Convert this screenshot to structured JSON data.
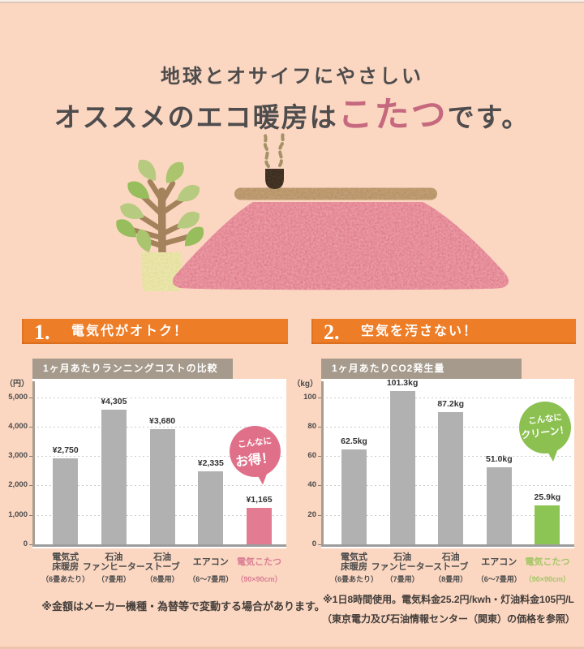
{
  "header": {
    "subtitle": "地球とオサイフにやさしい",
    "title_prefix": "オススメのエコ暖房は",
    "title_highlight": "こたつ",
    "title_suffix": "です。"
  },
  "colors": {
    "background": "#fbd7c2",
    "accent_orange": "#ee7d28",
    "band_taupe": "#a59a8b",
    "bar_gray": "#b1b1b1",
    "bar_pink": "#e37b93",
    "bar_green": "#8cc553",
    "bubble_pink": "#e0708a",
    "bubble_green": "#8cc152",
    "highlight_text_pink": "#db7d94",
    "highlight_text_green": "#a3c763",
    "title_highlight_rose": "#c6697e"
  },
  "illustration": {
    "items": [
      "potted-plant",
      "kotatsu-table",
      "pink-blanket",
      "teapot",
      "steam"
    ]
  },
  "sections": [
    {
      "number": "1.",
      "label": "電気代がオトク！"
    },
    {
      "number": "2.",
      "label": "空気を汚さない！"
    }
  ],
  "chart_data": [
    {
      "type": "bar",
      "title": "1ヶ月あたりランニングコストの比較",
      "unit_label": "（円）",
      "categories": [
        {
          "lines": [
            "電気式",
            "床暖房"
          ],
          "note": "（6畳あたり）"
        },
        {
          "lines": [
            "石油",
            "ファンヒーター"
          ],
          "note": "（7畳用）"
        },
        {
          "lines": [
            "石油",
            "ストーブ"
          ],
          "note": "（8畳用）"
        },
        {
          "lines": [
            "エアコン"
          ],
          "note": "（6〜7畳用）"
        },
        {
          "lines": [
            "電気こたつ"
          ],
          "note": "（90×90cm）"
        }
      ],
      "values": [
        2750,
        4305,
        3680,
        2335,
        1165
      ],
      "value_labels": [
        "¥2,750",
        "¥4,305",
        "¥3,680",
        "¥2,335",
        "¥1,165"
      ],
      "yticks": [
        0,
        1000,
        2000,
        3000,
        4000,
        5000
      ],
      "ytick_labels": [
        "0",
        "1,000",
        "2,000",
        "3,000",
        "4,000",
        "5,000"
      ],
      "ylim": [
        0,
        5500
      ],
      "grid": "dotted-horizontal",
      "legend": "none",
      "highlight_index": 4,
      "bubble": {
        "line1": "こんなに",
        "line2": "お得！"
      }
    },
    {
      "type": "bar",
      "title": "1ヶ月あたりCO2発生量",
      "unit_label": "（kg）",
      "categories": [
        {
          "lines": [
            "電気式",
            "床暖房"
          ],
          "note": "（6畳あたり）"
        },
        {
          "lines": [
            "石油",
            "ファンヒーター"
          ],
          "note": "（7畳用）"
        },
        {
          "lines": [
            "石油",
            "ストーブ"
          ],
          "note": "（8畳用）"
        },
        {
          "lines": [
            "エアコン"
          ],
          "note": "（6〜7畳用）"
        },
        {
          "lines": [
            "電気こたつ"
          ],
          "note": "（90×90cm）"
        }
      ],
      "values": [
        62.5,
        101.3,
        87.2,
        51.0,
        25.9
      ],
      "value_labels": [
        "62.5kg",
        "101.3kg",
        "87.2kg",
        "51.0kg",
        "25.9kg"
      ],
      "yticks": [
        0,
        20,
        40,
        60,
        80,
        100
      ],
      "ytick_labels": [
        "0",
        "20",
        "40",
        "60",
        "80",
        "100"
      ],
      "ylim": [
        0,
        110
      ],
      "grid": "dotted-horizontal",
      "legend": "none",
      "highlight_index": 4,
      "bubble": {
        "line1": "こんなに",
        "line2": "クリーン！"
      }
    }
  ],
  "footnotes": {
    "left": "※金額はメーカー機種・為替等で変動する場合があります。",
    "right_line1": "※1日8時間使用。電気料金25.2円/kwh・灯油料金105円/L",
    "right_line2": "（東京電力及び石油情報センター（関東）の価格を参照）"
  }
}
